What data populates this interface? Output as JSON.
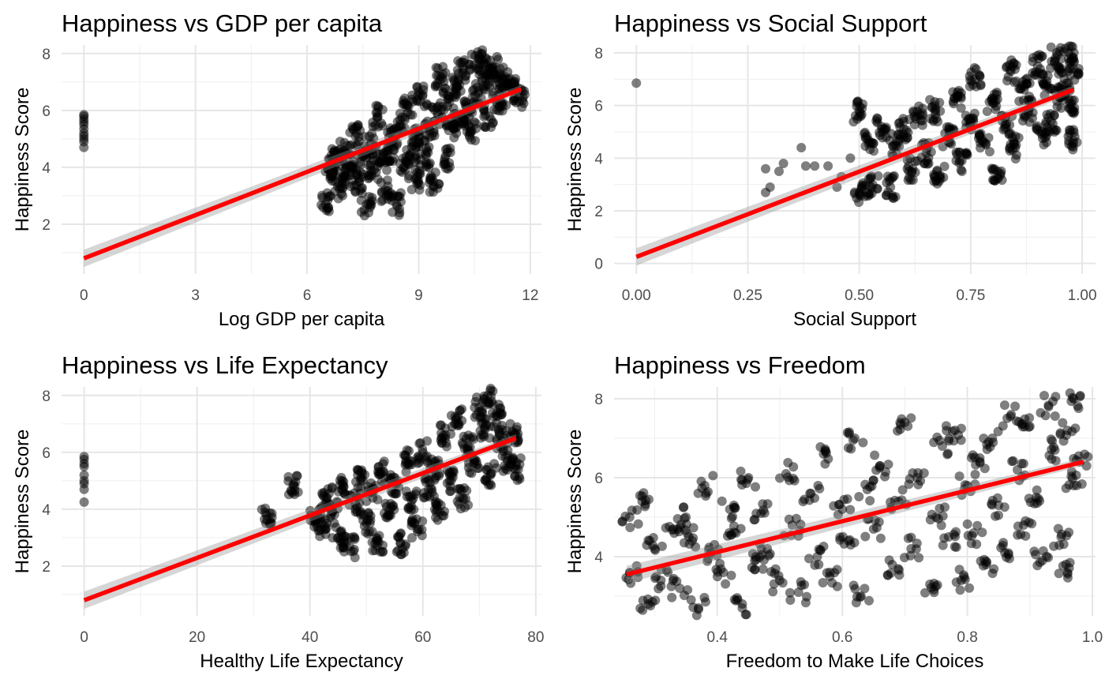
{
  "chart_data": [
    {
      "type": "scatter",
      "title": "Happiness vs GDP per capita",
      "xlabel": "Log GDP per capita",
      "ylabel": "Happiness Score",
      "xlim": [
        -0.6,
        12.3
      ],
      "ylim": [
        0.25,
        8.3
      ],
      "x_ticks": [
        0,
        3,
        6,
        9,
        12
      ],
      "x_tick_labels": [
        "0",
        "3",
        "6",
        "9",
        "12"
      ],
      "y_ticks": [
        2,
        4,
        6,
        8
      ],
      "y_tick_labels": [
        "2",
        "4",
        "6",
        "8"
      ],
      "grid": true,
      "points": [
        [
          0,
          4.7
        ],
        [
          0,
          4.9
        ],
        [
          0,
          5.0
        ],
        [
          0,
          5.1
        ],
        [
          0,
          5.2
        ],
        [
          0,
          5.35
        ],
        [
          0,
          5.5
        ],
        [
          0,
          5.6
        ],
        [
          0,
          5.7
        ],
        [
          0,
          5.8
        ],
        [
          0,
          5.85
        ],
        [
          6.5,
          2.7
        ],
        [
          6.6,
          4.0
        ],
        [
          6.7,
          3.9
        ],
        [
          6.8,
          4.3
        ],
        [
          6.9,
          3.3
        ],
        [
          7.0,
          4.6
        ],
        [
          7.1,
          3.7
        ],
        [
          7.2,
          4.1
        ],
        [
          7.3,
          5.1
        ],
        [
          7.4,
          3.5
        ],
        [
          7.5,
          4.4
        ],
        [
          7.6,
          2.7
        ],
        [
          7.7,
          4.8
        ],
        [
          7.8,
          3.9
        ],
        [
          7.9,
          5.8
        ],
        [
          8.0,
          4.2
        ],
        [
          8.1,
          3.2
        ],
        [
          8.2,
          4.6
        ],
        [
          8.3,
          5.0
        ],
        [
          8.4,
          2.7
        ],
        [
          8.5,
          5.5
        ],
        [
          8.6,
          4.0
        ],
        [
          8.7,
          6.2
        ],
        [
          8.8,
          4.5
        ],
        [
          8.9,
          3.6
        ],
        [
          9.0,
          5.1
        ],
        [
          9.1,
          6.5
        ],
        [
          9.2,
          4.4
        ],
        [
          9.3,
          5.3
        ],
        [
          9.4,
          3.5
        ],
        [
          9.5,
          5.9
        ],
        [
          9.6,
          7.2
        ],
        [
          9.7,
          4.3
        ],
        [
          9.8,
          6.4
        ],
        [
          9.9,
          5.4
        ],
        [
          10.0,
          6.8
        ],
        [
          10.1,
          5.6
        ],
        [
          10.2,
          7.4
        ],
        [
          10.3,
          6.1
        ],
        [
          10.4,
          5.3
        ],
        [
          10.5,
          7.6
        ],
        [
          10.6,
          6.6
        ],
        [
          10.7,
          8.0
        ],
        [
          10.8,
          7.1
        ],
        [
          10.9,
          5.8
        ],
        [
          11.0,
          7.5
        ],
        [
          11.1,
          6.9
        ],
        [
          11.2,
          6.3
        ],
        [
          11.3,
          7.2
        ],
        [
          11.5,
          6.8
        ],
        [
          11.7,
          6.5
        ]
      ],
      "trend": {
        "x": [
          0,
          11.75
        ],
        "y": [
          0.8,
          6.75
        ]
      }
    },
    {
      "type": "scatter",
      "title": "Happiness vs Social Support",
      "xlabel": "Social Support",
      "ylabel": "Happiness Score",
      "xlim": [
        -0.05,
        1.03
      ],
      "ylim": [
        -0.4,
        8.3
      ],
      "x_ticks": [
        0,
        0.25,
        0.5,
        0.75,
        1.0
      ],
      "x_tick_labels": [
        "0.00",
        "0.25",
        "0.50",
        "0.75",
        "1.00"
      ],
      "y_ticks": [
        0,
        2,
        4,
        6,
        8
      ],
      "y_tick_labels": [
        "0",
        "2",
        "4",
        "6",
        "8"
      ],
      "grid": true,
      "points": [
        [
          0.0,
          6.85
        ],
        [
          0.29,
          2.7
        ],
        [
          0.29,
          3.6
        ],
        [
          0.3,
          2.9
        ],
        [
          0.32,
          3.5
        ],
        [
          0.33,
          3.8
        ],
        [
          0.37,
          4.4
        ],
        [
          0.38,
          3.7
        ],
        [
          0.4,
          3.7
        ],
        [
          0.43,
          3.7
        ],
        [
          0.45,
          2.9
        ],
        [
          0.46,
          3.3
        ],
        [
          0.48,
          4.0
        ],
        [
          0.5,
          2.7
        ],
        [
          0.5,
          5.8
        ],
        [
          0.52,
          4.7
        ],
        [
          0.53,
          3.0
        ],
        [
          0.55,
          5.2
        ],
        [
          0.57,
          2.9
        ],
        [
          0.58,
          4.5
        ],
        [
          0.6,
          5.1
        ],
        [
          0.62,
          3.6
        ],
        [
          0.63,
          5.6
        ],
        [
          0.65,
          4.2
        ],
        [
          0.67,
          5.8
        ],
        [
          0.68,
          3.3
        ],
        [
          0.7,
          4.8
        ],
        [
          0.72,
          6.3
        ],
        [
          0.73,
          3.9
        ],
        [
          0.75,
          5.5
        ],
        [
          0.76,
          7.0
        ],
        [
          0.78,
          4.6
        ],
        [
          0.8,
          6.1
        ],
        [
          0.81,
          3.5
        ],
        [
          0.83,
          5.3
        ],
        [
          0.84,
          7.3
        ],
        [
          0.85,
          4.4
        ],
        [
          0.87,
          6.6
        ],
        [
          0.88,
          5.8
        ],
        [
          0.9,
          7.5
        ],
        [
          0.91,
          4.9
        ],
        [
          0.92,
          6.8
        ],
        [
          0.93,
          5.4
        ],
        [
          0.94,
          7.8
        ],
        [
          0.95,
          6.3
        ],
        [
          0.96,
          7.0
        ],
        [
          0.97,
          8.0
        ],
        [
          0.98,
          4.65
        ],
        [
          0.98,
          7.4
        ],
        [
          0.97,
          5.9
        ]
      ],
      "trend": {
        "x": [
          0.0,
          0.98
        ],
        "y": [
          0.25,
          6.6
        ]
      }
    },
    {
      "type": "scatter",
      "title": "Happiness vs Life Expectancy",
      "xlabel": "Healthy Life Expectancy",
      "ylabel": "Happiness Score",
      "xlim": [
        -4,
        81
      ],
      "ylim": [
        0.25,
        8.3
      ],
      "x_ticks": [
        0,
        20,
        40,
        60,
        80
      ],
      "x_tick_labels": [
        "0",
        "20",
        "40",
        "60",
        "80"
      ],
      "y_ticks": [
        2,
        4,
        6,
        8
      ],
      "y_tick_labels": [
        "2",
        "4",
        "6",
        "8"
      ],
      "grid": true,
      "points": [
        [
          0,
          4.25
        ],
        [
          0,
          4.7
        ],
        [
          0,
          4.9
        ],
        [
          0,
          5.0
        ],
        [
          0,
          5.2
        ],
        [
          0,
          5.5
        ],
        [
          0,
          5.6
        ],
        [
          0,
          5.75
        ],
        [
          0,
          5.85
        ],
        [
          32.3,
          3.8
        ],
        [
          37,
          4.85
        ],
        [
          41,
          3.7
        ],
        [
          42,
          3.3
        ],
        [
          43,
          4.4
        ],
        [
          44,
          3.9
        ],
        [
          45,
          3.0
        ],
        [
          46,
          4.8
        ],
        [
          47,
          2.7
        ],
        [
          48,
          4.2
        ],
        [
          49,
          5.0
        ],
        [
          50,
          3.5
        ],
        [
          51,
          4.6
        ],
        [
          52,
          2.9
        ],
        [
          53,
          5.3
        ],
        [
          54,
          3.8
        ],
        [
          55,
          4.9
        ],
        [
          56,
          2.8
        ],
        [
          57,
          5.7
        ],
        [
          58,
          4.3
        ],
        [
          59,
          3.3
        ],
        [
          60,
          6.0
        ],
        [
          61,
          4.7
        ],
        [
          62,
          5.4
        ],
        [
          63,
          3.9
        ],
        [
          64,
          6.6
        ],
        [
          65,
          5.0
        ],
        [
          66,
          7.2
        ],
        [
          67,
          4.4
        ],
        [
          68,
          6.2
        ],
        [
          69,
          5.6
        ],
        [
          70,
          7.6
        ],
        [
          71,
          6.8
        ],
        [
          71.5,
          8.0
        ],
        [
          72,
          5.2
        ],
        [
          73,
          7.3
        ],
        [
          74,
          6.4
        ],
        [
          75,
          5.7
        ],
        [
          76,
          6.7
        ],
        [
          76.5,
          5.4
        ]
      ],
      "trend": {
        "x": [
          0,
          76.5
        ],
        "y": [
          0.8,
          6.5
        ]
      }
    },
    {
      "type": "scatter",
      "title": "Happiness vs Freedom",
      "xlabel": "Freedom to Make Life Choices",
      "ylabel": "Happiness Score",
      "xlim": [
        0.235,
        1.005
      ],
      "ylim": [
        2.5,
        8.3
      ],
      "x_ticks": [
        0.4,
        0.6,
        0.8,
        1.0
      ],
      "x_tick_labels": [
        "0.4",
        "0.6",
        "0.8",
        "1.0"
      ],
      "y_ticks": [
        4,
        6,
        8
      ],
      "y_tick_labels": [
        "4",
        "6",
        "8"
      ],
      "grid": true,
      "points": [
        [
          0.26,
          5.0
        ],
        [
          0.26,
          3.6
        ],
        [
          0.28,
          5.4
        ],
        [
          0.29,
          2.8
        ],
        [
          0.3,
          4.2
        ],
        [
          0.31,
          3.4
        ],
        [
          0.33,
          4.7
        ],
        [
          0.34,
          3.2
        ],
        [
          0.35,
          5.0
        ],
        [
          0.36,
          4.4
        ],
        [
          0.37,
          2.7
        ],
        [
          0.38,
          5.8
        ],
        [
          0.39,
          4.1
        ],
        [
          0.41,
          3.6
        ],
        [
          0.42,
          5.2
        ],
        [
          0.43,
          4.6
        ],
        [
          0.44,
          2.7
        ],
        [
          0.45,
          6.0
        ],
        [
          0.46,
          3.9
        ],
        [
          0.47,
          5.1
        ],
        [
          0.48,
          4.2
        ],
        [
          0.5,
          3.4
        ],
        [
          0.51,
          6.1
        ],
        [
          0.52,
          4.8
        ],
        [
          0.53,
          3.1
        ],
        [
          0.55,
          5.6
        ],
        [
          0.56,
          4.0
        ],
        [
          0.57,
          6.6
        ],
        [
          0.58,
          3.5
        ],
        [
          0.6,
          5.2
        ],
        [
          0.61,
          4.4
        ],
        [
          0.62,
          7.0
        ],
        [
          0.63,
          3.0
        ],
        [
          0.64,
          5.7
        ],
        [
          0.65,
          4.7
        ],
        [
          0.66,
          6.3
        ],
        [
          0.68,
          3.8
        ],
        [
          0.69,
          5.4
        ],
        [
          0.7,
          7.4
        ],
        [
          0.71,
          4.2
        ],
        [
          0.72,
          6.0
        ],
        [
          0.74,
          3.3
        ],
        [
          0.75,
          5.0
        ],
        [
          0.76,
          6.8
        ],
        [
          0.77,
          4.5
        ],
        [
          0.78,
          7.2
        ],
        [
          0.79,
          3.4
        ],
        [
          0.8,
          5.8
        ],
        [
          0.81,
          4.6
        ],
        [
          0.82,
          6.5
        ],
        [
          0.83,
          3.8
        ],
        [
          0.84,
          7.0
        ],
        [
          0.85,
          5.3
        ],
        [
          0.86,
          4.1
        ],
        [
          0.87,
          7.6
        ],
        [
          0.88,
          6.2
        ],
        [
          0.89,
          4.8
        ],
        [
          0.9,
          7.3
        ],
        [
          0.91,
          5.5
        ],
        [
          0.92,
          3.9
        ],
        [
          0.93,
          7.8
        ],
        [
          0.94,
          6.7
        ],
        [
          0.95,
          4.5
        ],
        [
          0.96,
          7.2
        ],
        [
          0.97,
          8.0
        ],
        [
          0.97,
          5.8
        ],
        [
          0.98,
          6.4
        ],
        [
          0.96,
          3.6
        ]
      ],
      "trend": {
        "x": [
          0.255,
          0.985
        ],
        "y": [
          3.55,
          6.4
        ]
      }
    }
  ]
}
